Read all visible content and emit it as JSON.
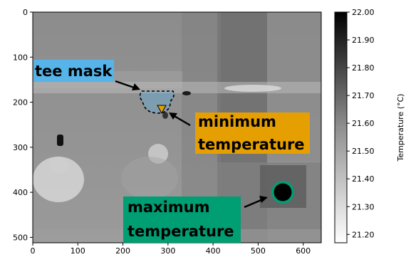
{
  "chart_data": {
    "type": "heatmap",
    "x_ticks": [
      0,
      100,
      200,
      300,
      400,
      500,
      600
    ],
    "y_ticks": [
      0,
      100,
      200,
      300,
      400,
      500
    ],
    "xlim": [
      0,
      640
    ],
    "ylim": [
      512,
      0
    ],
    "colorbar": {
      "label": "Temperature (°C)",
      "range": [
        21.17,
        22.0
      ],
      "ticks": [
        "21.20",
        "21.30",
        "21.40",
        "21.50",
        "21.60",
        "21.70",
        "21.80",
        "21.90",
        "22.00"
      ],
      "colormap": "gray_r"
    },
    "annotations": [
      {
        "id": "tee-mask",
        "text": "tee mask",
        "box_color": "#56b4e9",
        "target": [
          225,
          185
        ]
      },
      {
        "id": "minimum-temperature",
        "line1": "minimum",
        "line2": "temperature",
        "box_color": "#e69f00",
        "target": [
          282,
          214
        ]
      },
      {
        "id": "maximum-temperature",
        "line1": "maximum",
        "line2": "temperature",
        "box_color": "#009e73",
        "target": [
          550,
          400
        ]
      }
    ]
  }
}
